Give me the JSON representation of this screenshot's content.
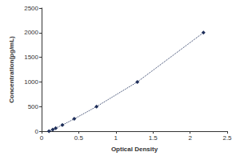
{
  "chart_data": {
    "type": "line",
    "x_label": "Optical Density",
    "y_label": "Concentration(pg/mL)",
    "x": [
      0.1,
      0.15,
      0.19,
      0.28,
      0.44,
      0.74,
      1.29,
      2.18
    ],
    "values": [
      0,
      31.2,
      62.5,
      125,
      250,
      500,
      1000,
      2000
    ],
    "color": "#1f2f5a",
    "marker": "diamond",
    "line_style": "dotted",
    "xlim": [
      0,
      2.5
    ],
    "xticks": [
      0,
      0.5,
      1,
      1.5,
      2,
      2.5
    ],
    "ylim": [
      0,
      2500
    ],
    "yticks": [
      0,
      500,
      1000,
      1500,
      2000,
      2500
    ],
    "grid": false
  }
}
